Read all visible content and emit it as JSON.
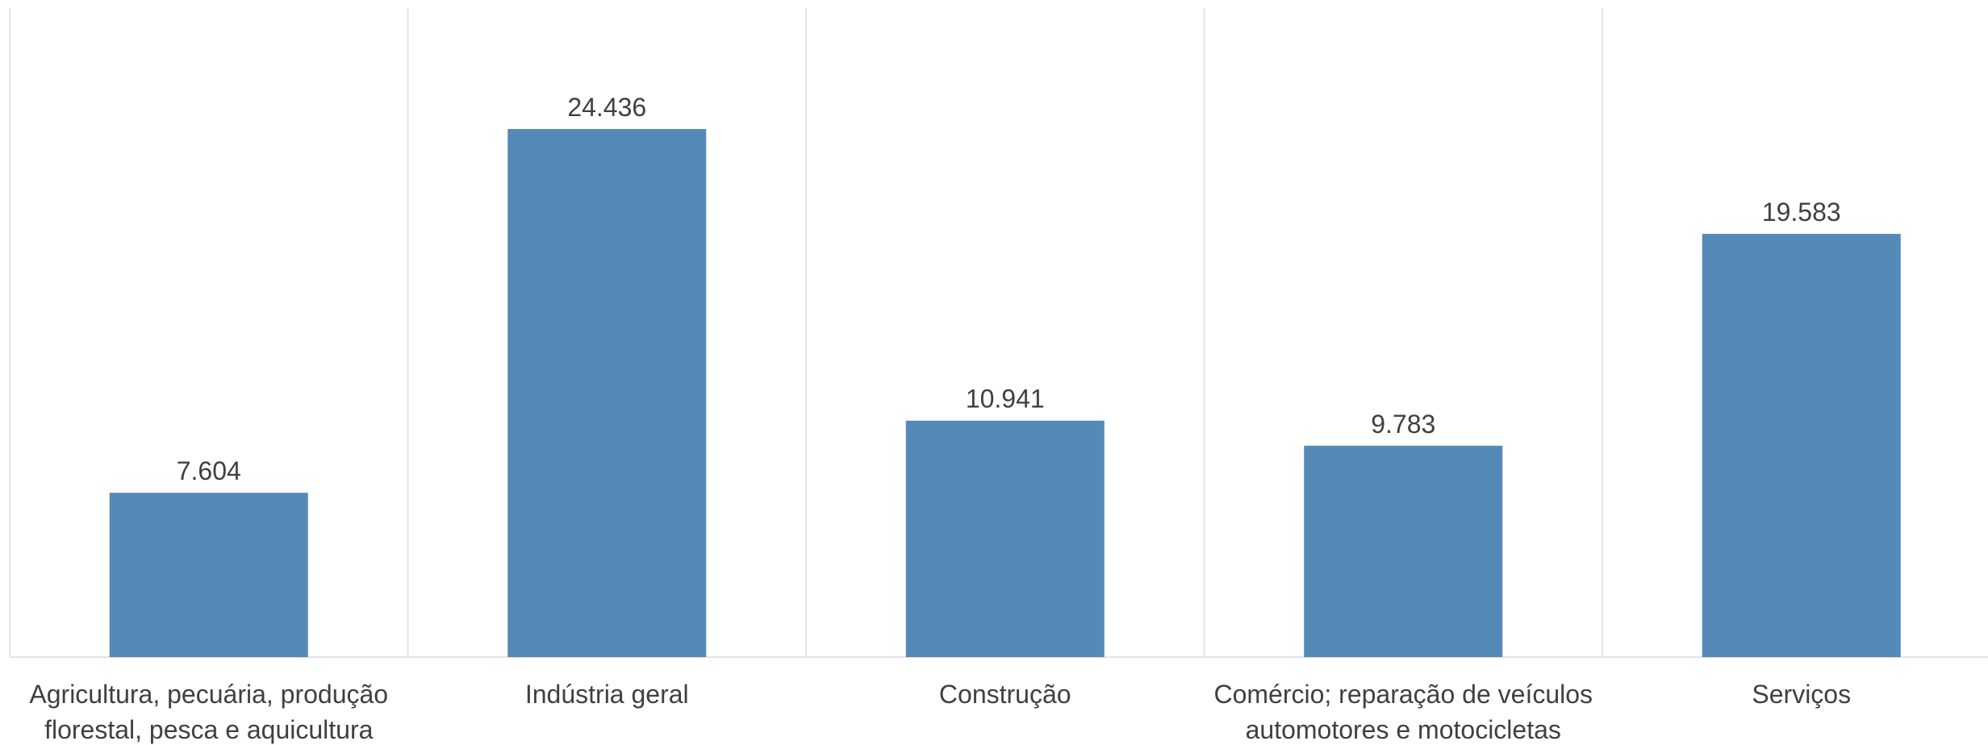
{
  "chart_data": {
    "type": "bar",
    "categories": [
      [
        "Agricultura, pecuária, produção",
        "florestal, pesca e aquicultura"
      ],
      [
        "Indústria geral"
      ],
      [
        "Construção"
      ],
      [
        "Comércio; reparação de veículos",
        "automotores e motocicletas"
      ],
      [
        "Serviços"
      ]
    ],
    "values": [
      7604,
      24436,
      10941,
      9783,
      19583
    ],
    "value_labels": [
      "7.604",
      "24.436",
      "10.941",
      "9.783",
      "19.583"
    ],
    "title": "",
    "xlabel": "",
    "ylabel": "",
    "ylim": [
      0,
      30000
    ],
    "grid": "vertical separators between categories",
    "legend": "none",
    "colors": {
      "bar": "#5589b8",
      "grid": "#e3e3e3",
      "text": "#404040",
      "background": "#ffffff"
    }
  }
}
